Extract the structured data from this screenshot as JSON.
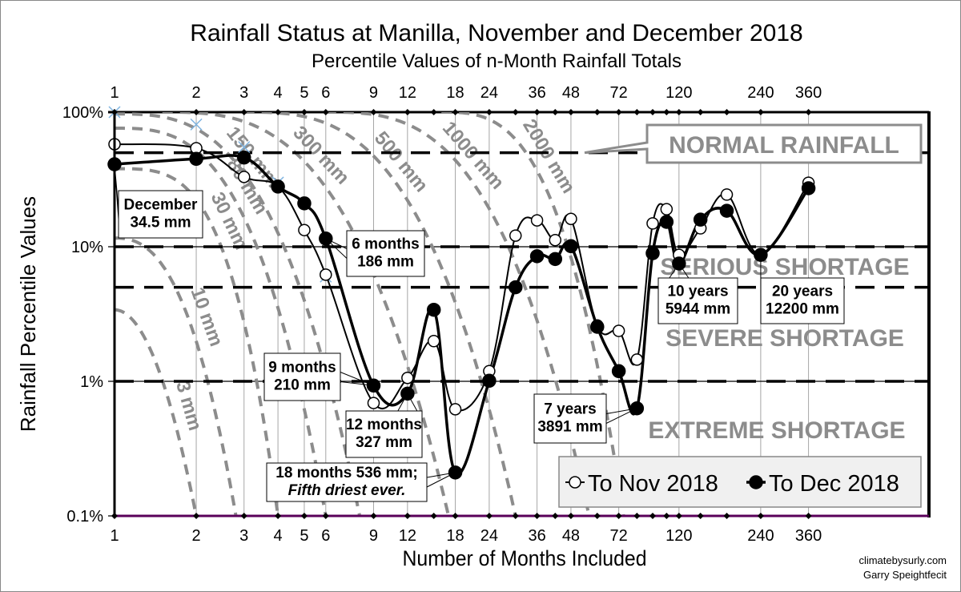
{
  "chart_data": {
    "type": "line",
    "title": "Rainfall Status at Manilla, November and December 2018",
    "subtitle": "Percentile Values of n-Month Rainfall Totals",
    "xlabel": "Number of Months Included",
    "ylabel": "Rainfall Percentile Values",
    "x_scale": "log",
    "y_scale": "log",
    "xlim": [
      1,
      360
    ],
    "ylim": [
      0.1,
      100
    ],
    "x_ticks": [
      1,
      2,
      3,
      4,
      5,
      6,
      9,
      12,
      18,
      24,
      36,
      48,
      72,
      120,
      240,
      360
    ],
    "x_tick_labels": [
      "1",
      "2",
      "3",
      "4",
      "5",
      "6",
      "9",
      "12",
      "18",
      "24",
      "36",
      "48",
      "72",
      "120",
      "240",
      "360"
    ],
    "y_ticks": [
      100,
      10,
      1,
      0.1
    ],
    "y_tick_labels": [
      "100%",
      "10%",
      "1%",
      "0.1%"
    ],
    "grid": true,
    "months": [
      1,
      2,
      3,
      4,
      5,
      6,
      9,
      12,
      15,
      18,
      24,
      30,
      36,
      42,
      48,
      60,
      72,
      84,
      96,
      108,
      120,
      144,
      180,
      240,
      360
    ],
    "series": [
      {
        "name": "To Nov 2018",
        "marker": "open-circle",
        "color": "#000000",
        "values": [
          57.8,
          54,
          33,
          28,
          13.3,
          6.2,
          0.69,
          1.06,
          1.99,
          0.62,
          1.19,
          12.1,
          15.7,
          11.2,
          16.1,
          2.6,
          2.37,
          1.45,
          14.9,
          19,
          8.7,
          13.7,
          24.4,
          8.8,
          29.9
        ]
      },
      {
        "name": "To Dec 2018",
        "marker": "filled-circle",
        "color": "#000000",
        "values": [
          41,
          45,
          46,
          28,
          21,
          11.5,
          0.93,
          0.81,
          3.4,
          0.21,
          1.01,
          5.0,
          8.5,
          8.1,
          10.1,
          2.54,
          1.19,
          0.63,
          8.95,
          15.3,
          7.5,
          15.9,
          18.5,
          8.7,
          27.2
        ]
      }
    ],
    "cross_markers": {
      "color": "#7fb4e0",
      "months": [
        1,
        2,
        3,
        4,
        6
      ],
      "values": [
        100,
        81,
        55,
        30,
        6
      ]
    },
    "thresholds": [
      50,
      10,
      5,
      1
    ],
    "zones": {
      "normal": "NORMAL RAINFALL",
      "serious": "SERIOUS SHORTAGE",
      "severe": "SEVERE SHORTAGE",
      "extreme": "EXTREME SHORTAGE"
    },
    "isolines": [
      {
        "label": "3 mm",
        "start_month": 1,
        "start_pct": 3.4,
        "end_month": 2
      },
      {
        "label": "10 mm",
        "start_month": 1,
        "start_pct": 11.6,
        "end_month": 2.8
      },
      {
        "label": "30 mm",
        "start_month": 1,
        "start_pct": 38,
        "end_month": 4
      },
      {
        "label": "80 mm",
        "start_month": 1,
        "start_pct": 76,
        "end_month": 6
      },
      {
        "label": "150 mm",
        "start_month": 1,
        "start_pct": 97,
        "end_month": 8
      },
      {
        "label": "300 mm",
        "start_month": 1.5,
        "start_pct": 100,
        "end_month": 17
      },
      {
        "label": "500 mm",
        "start_month": 3,
        "start_pct": 100,
        "end_month": 30
      },
      {
        "label": "1000 mm",
        "start_month": 6,
        "start_pct": 100,
        "end_month": 56
      },
      {
        "label": "2000 mm",
        "start_month": 16,
        "start_pct": 100,
        "end_month": 75
      }
    ],
    "annotations": [
      {
        "lines": [
          "December",
          "34.5 mm"
        ],
        "month": 1,
        "series": 1
      },
      {
        "lines": [
          "6 months",
          "186 mm"
        ],
        "month": 6,
        "series": 1
      },
      {
        "lines": [
          "9 months",
          "210 mm"
        ],
        "month": 9,
        "series": 1
      },
      {
        "lines": [
          "12 months",
          "327 mm"
        ],
        "month": 12,
        "series": 1
      },
      {
        "lines": [
          "18 months 536 mm;",
          "Fifth driest ever."
        ],
        "month": 18,
        "series": 1
      },
      {
        "lines": [
          "7 years",
          "3891 mm"
        ],
        "month": 84,
        "series": 1
      },
      {
        "lines": [
          "10 years",
          "5944 mm"
        ],
        "month": 120,
        "series": 1
      },
      {
        "lines": [
          "20 years",
          "12200 mm"
        ],
        "month": 240,
        "series": 1
      }
    ],
    "colors": {
      "isoline": "#8c8c8c",
      "zone_text": "#8c8c8c",
      "grid": "#a6a6a6",
      "bottom_axis": "#5a005a",
      "legend_bg": "#f0f0f0"
    }
  },
  "credits": {
    "site": "climatebysurly.com",
    "author": "Garry Speightfecit"
  }
}
